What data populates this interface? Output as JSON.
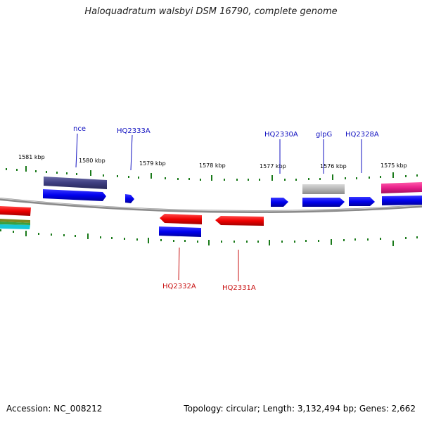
{
  "title": "Haloquadratum walsbyi DSM 16790, complete genome",
  "accession": "Accession: NC_008212",
  "summary": "Topology: circular; Length: 3,132,494 bp; Genes: 2,662",
  "scale_labels": [
    "1581 kbp",
    "1580 kbp",
    "1579 kbp",
    "1578 kbp",
    "1577 kbp",
    "1576 kbp",
    "1575 kbp"
  ],
  "gene_labels_top": [
    "nce",
    "HQ2333A",
    "HQ2330A",
    "glpG",
    "HQ2328A"
  ],
  "gene_labels_bottom": [
    "HQ2332A",
    "HQ2331A"
  ],
  "colors": {
    "backbone": "#8a8a8a",
    "tick": "#1a7a1a",
    "forward_cds": "#0a0af0",
    "reverse_cds": "#ee0a0a",
    "label_forward": "#1010c0",
    "label_reverse": "#c81010",
    "rna_slate": "#4a4a8a",
    "pseudo_grey": "#b8b8b8",
    "magenta": "#e8208a"
  }
}
